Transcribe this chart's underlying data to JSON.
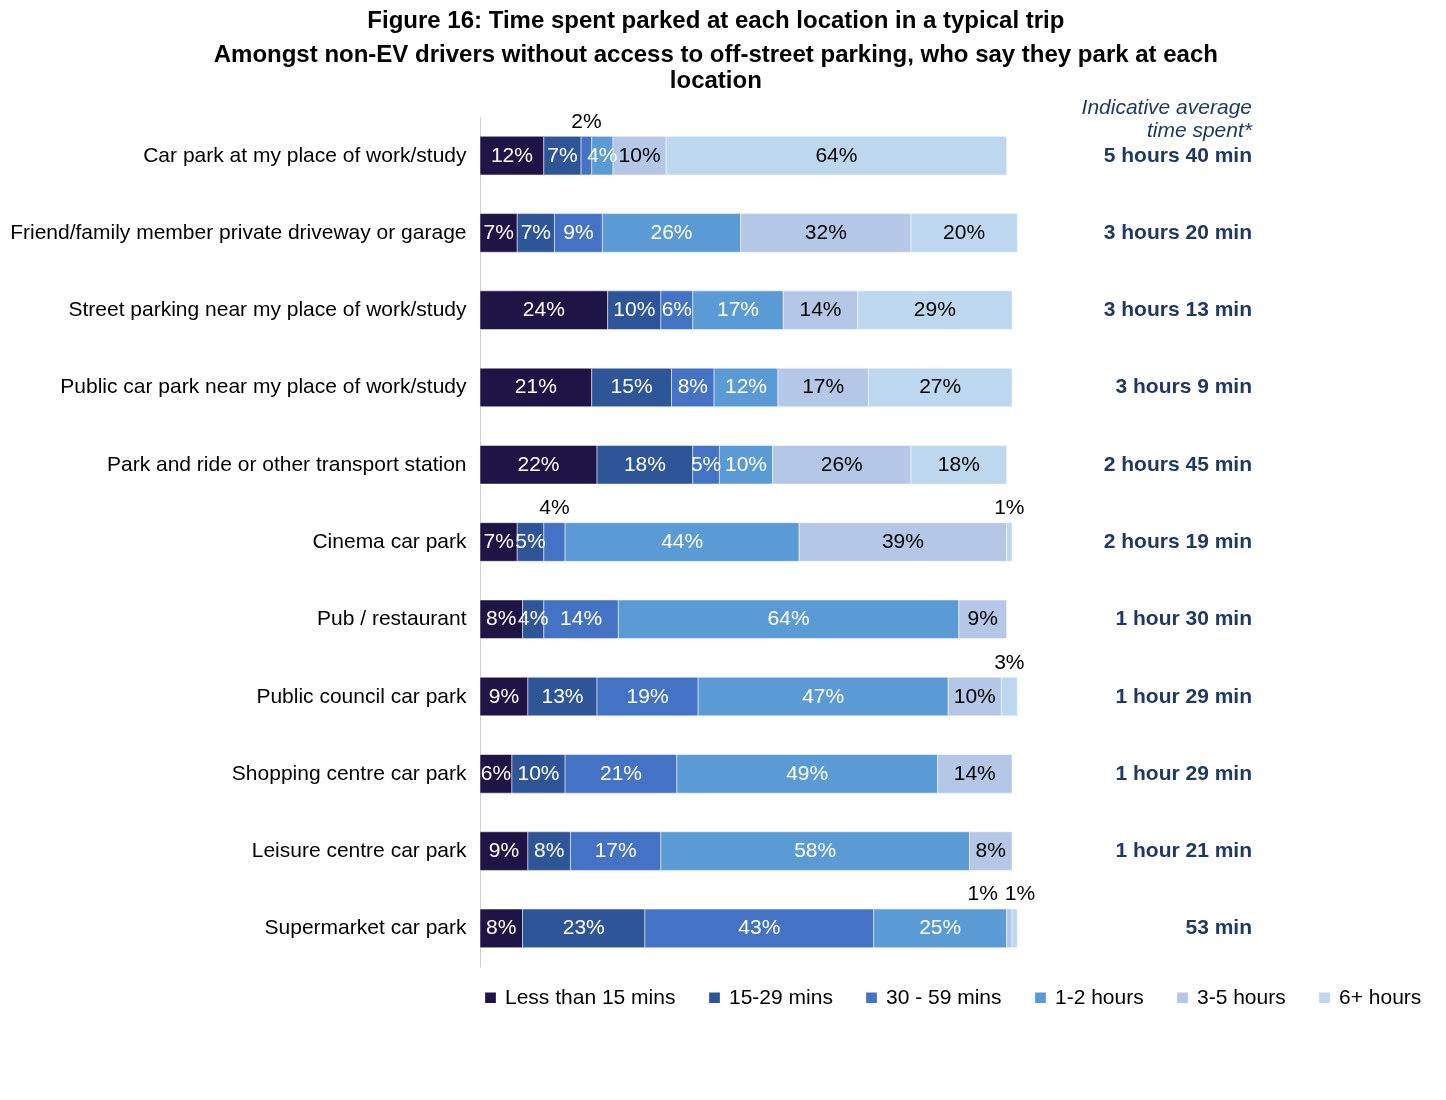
{
  "chart_data": {
    "type": "bar",
    "orientation": "horizontal",
    "stacked": true,
    "legend": "bottom",
    "title": "Figure 16: Time spent parked at each location in a typical trip",
    "subtitle": "Amongst non-EV drivers without access to off-street parking, who say they park at each location",
    "categories": [
      "Car park at my place of work/study",
      "Friend/family member private driveway or garage",
      "Street parking near my place of work/study",
      "Public car park near my place of work/study",
      "Park and ride or other transport station",
      "Cinema car park",
      "Pub / restaurant",
      "Public council car park",
      "Shopping centre car park",
      "Leisure centre car park",
      "Supermarket car park"
    ],
    "series": [
      {
        "name": "Less than 15 mins",
        "color": "#1f1446",
        "values": [
          12,
          7,
          24,
          21,
          22,
          7,
          8,
          9,
          6,
          9,
          8
        ],
        "value_labels": [
          "12%",
          "7%",
          "24%",
          "21%",
          "22%",
          "7%",
          "8%",
          "9%",
          "6%",
          "9%",
          "8%"
        ]
      },
      {
        "name": "15-29 mins",
        "color": "#2e5597",
        "values": [
          7,
          7,
          10,
          15,
          18,
          5,
          4,
          13,
          10,
          8,
          23
        ],
        "value_labels": [
          "7%",
          "7%",
          "10%",
          "15%",
          "18%",
          "5%",
          "4%",
          "13%",
          "10%",
          "8%",
          "23%"
        ]
      },
      {
        "name": "30 - 59 mins",
        "color": "#4472c4",
        "values": [
          2,
          9,
          6,
          8,
          5,
          4,
          14,
          19,
          21,
          17,
          43
        ],
        "value_labels": [
          "2%",
          "9%",
          "6%",
          "8%",
          "5%",
          "4%",
          "14%",
          "19%",
          "21%",
          "17%",
          "43%"
        ]
      },
      {
        "name": "1-2 hours",
        "color": "#5b9bd5",
        "values": [
          4,
          26,
          17,
          12,
          10,
          44,
          64,
          47,
          49,
          58,
          25
        ],
        "value_labels": [
          "4%",
          "26%",
          "17%",
          "12%",
          "10%",
          "44%",
          "64%",
          "47%",
          "49%",
          "58%",
          "25%"
        ]
      },
      {
        "name": "3-5 hours",
        "color": "#b4c7e7",
        "values": [
          10,
          32,
          14,
          17,
          26,
          39,
          9,
          10,
          14,
          8,
          1
        ],
        "value_labels": [
          "10%",
          "32%",
          "14%",
          "17%",
          "26%",
          "39%",
          "9%",
          "10%",
          "14%",
          "8%",
          "1%"
        ]
      },
      {
        "name": "6+ hours",
        "color": "#bdd7ee",
        "values": [
          64,
          20,
          29,
          27,
          18,
          1,
          null,
          3,
          null,
          null,
          1
        ],
        "value_labels": [
          "64%",
          "20%",
          "29%",
          "27%",
          "18%",
          "1%",
          null,
          "3%",
          null,
          null,
          "1%"
        ]
      }
    ],
    "annotations": [
      "Indicative average time spent*",
      "5 hours 40 min",
      "3 hours 20 min",
      "3 hours 13 min",
      "3 hours 9 min",
      "2 hours 45 min",
      "2 hours 19 min",
      "1 hour 30 min",
      "1 hour 29 min",
      "1 hour 29 min",
      "1 hour 21 min",
      "53 min"
    ]
  }
}
